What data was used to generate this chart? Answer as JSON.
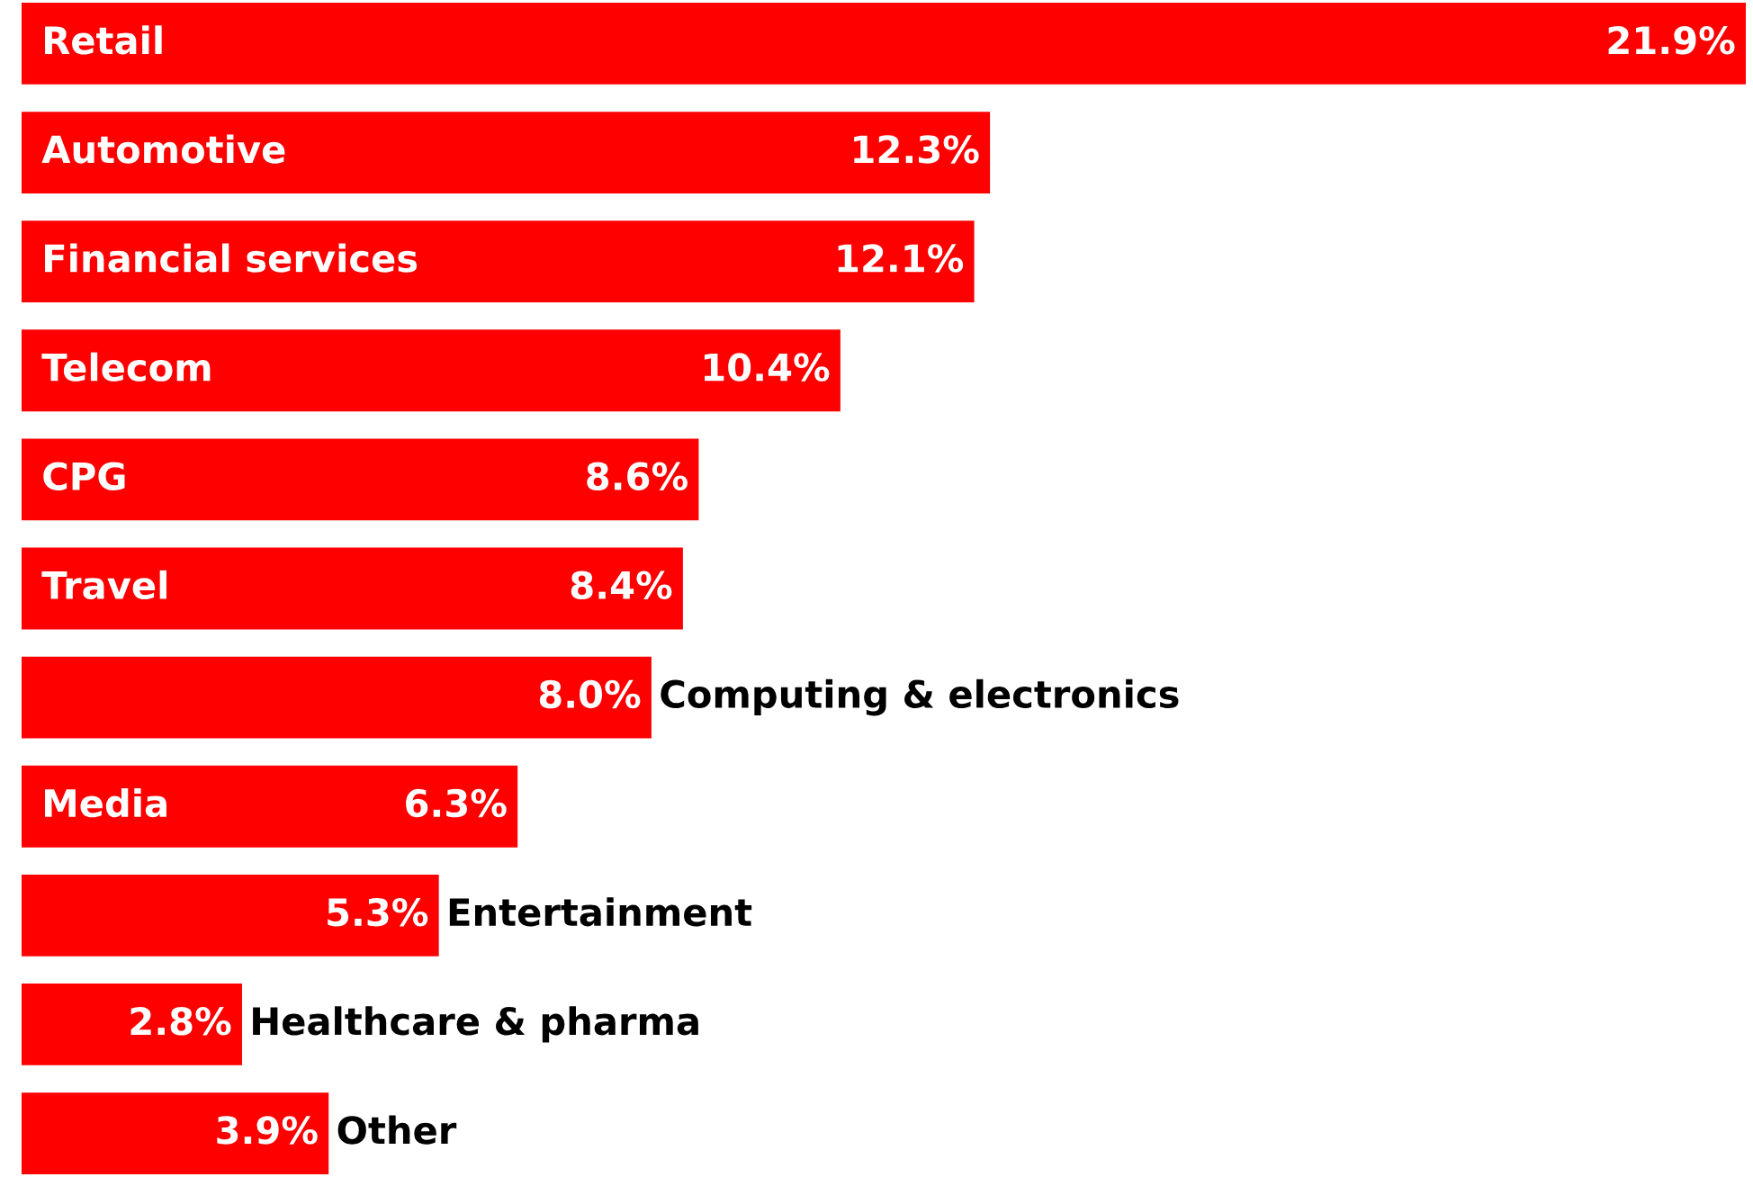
{
  "chart_data": {
    "type": "bar",
    "orientation": "horizontal",
    "categories": [
      "Retail",
      "Automotive",
      "Financial services",
      "Telecom",
      "CPG",
      "Travel",
      "Computing & electronics",
      "Media",
      "Entertainment",
      "Healthcare & pharma",
      "Other"
    ],
    "values": [
      21.9,
      12.3,
      12.1,
      10.4,
      8.6,
      8.4,
      8.0,
      6.3,
      5.3,
      2.8,
      3.9
    ],
    "value_labels": [
      "21.9%",
      "12.3%",
      "12.1%",
      "10.4%",
      "8.6%",
      "8.4%",
      "8.0%",
      "6.3%",
      "5.3%",
      "2.8%",
      "3.9%"
    ],
    "color": "#ff0000",
    "tick_labels": false
  }
}
